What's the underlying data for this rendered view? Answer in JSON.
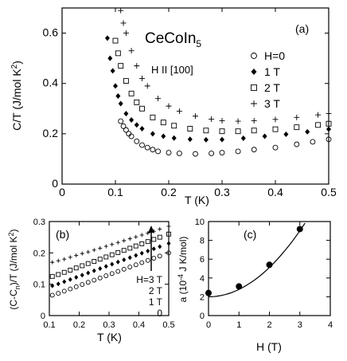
{
  "chart_data": [
    {
      "id": "a",
      "type": "scatter",
      "panel_label": "(a)",
      "annotations": {
        "compound": "CeCoIn",
        "compound_sub": "5",
        "field_dir": "H II [100]"
      },
      "xlabel": "T (K)",
      "ylabel": "C/T (J/mol K",
      "ylabel_sup": "2",
      "ylabel_end": ")",
      "xlim": [
        0,
        0.5
      ],
      "ylim": [
        0,
        0.7
      ],
      "xticks": [
        "0",
        "0.1",
        "0.2",
        "0.3",
        "0.4",
        "0.5"
      ],
      "yticks": [
        "0",
        "0.2",
        "0.4",
        "0.6"
      ],
      "legend_position": "right",
      "series": [
        {
          "name": "H=0",
          "marker": "open-circle",
          "x": [
            0.11,
            0.115,
            0.12,
            0.125,
            0.13,
            0.14,
            0.15,
            0.16,
            0.17,
            0.18,
            0.2,
            0.22,
            0.25,
            0.28,
            0.3,
            0.33,
            0.36,
            0.4,
            0.44,
            0.47,
            0.5
          ],
          "y": [
            0.25,
            0.23,
            0.215,
            0.2,
            0.19,
            0.17,
            0.155,
            0.145,
            0.137,
            0.13,
            0.125,
            0.122,
            0.12,
            0.122,
            0.125,
            0.13,
            0.137,
            0.145,
            0.158,
            0.168,
            0.178
          ]
        },
        {
          "name": "1 T",
          "marker": "filled-diamond",
          "x": [
            0.085,
            0.09,
            0.095,
            0.1,
            0.105,
            0.11,
            0.12,
            0.13,
            0.14,
            0.15,
            0.17,
            0.19,
            0.21,
            0.24,
            0.27,
            0.3,
            0.34,
            0.38,
            0.42,
            0.46,
            0.5
          ],
          "y": [
            0.58,
            0.5,
            0.45,
            0.39,
            0.35,
            0.32,
            0.28,
            0.255,
            0.235,
            0.22,
            0.2,
            0.19,
            0.183,
            0.178,
            0.176,
            0.177,
            0.182,
            0.19,
            0.198,
            0.208,
            0.218
          ]
        },
        {
          "name": "2 T",
          "marker": "open-square",
          "x": [
            0.1,
            0.105,
            0.11,
            0.12,
            0.13,
            0.14,
            0.15,
            0.17,
            0.19,
            0.21,
            0.24,
            0.27,
            0.3,
            0.33,
            0.36,
            0.4,
            0.44,
            0.48,
            0.5
          ],
          "y": [
            0.57,
            0.52,
            0.47,
            0.41,
            0.36,
            0.325,
            0.3,
            0.265,
            0.245,
            0.232,
            0.22,
            0.213,
            0.21,
            0.21,
            0.213,
            0.218,
            0.226,
            0.235,
            0.24
          ]
        },
        {
          "name": "3 T",
          "marker": "plus",
          "x": [
            0.11,
            0.115,
            0.12,
            0.13,
            0.14,
            0.15,
            0.16,
            0.18,
            0.2,
            0.22,
            0.25,
            0.28,
            0.3,
            0.33,
            0.36,
            0.4,
            0.44,
            0.48,
            0.5
          ],
          "y": [
            0.69,
            0.64,
            0.6,
            0.53,
            0.47,
            0.42,
            0.39,
            0.34,
            0.31,
            0.29,
            0.27,
            0.258,
            0.252,
            0.25,
            0.252,
            0.257,
            0.265,
            0.275,
            0.28
          ]
        }
      ]
    },
    {
      "id": "b",
      "type": "scatter",
      "panel_label": "(b)",
      "xlabel": "T (K)",
      "ylabel": "(C-C",
      "ylabel_sub": "n",
      "ylabel_mid": ")/T (J/mol K",
      "ylabel_sup": "2",
      "ylabel_end": ")",
      "xlim": [
        0.1,
        0.5
      ],
      "ylim": [
        0,
        0.3
      ],
      "xticks": [
        "0.1",
        "0.2",
        "0.3",
        "0.4",
        "0.5"
      ],
      "yticks": [
        "0",
        "0.1",
        "0.2",
        "0.3"
      ],
      "legend": [
        "H=3 T",
        "2 T",
        "1 T",
        "0"
      ],
      "series": [
        {
          "name": "H=3 T",
          "marker": "plus",
          "x": [
            0.11,
            0.13,
            0.15,
            0.17,
            0.19,
            0.21,
            0.23,
            0.25,
            0.27,
            0.29,
            0.31,
            0.33,
            0.35,
            0.37,
            0.39,
            0.41,
            0.43,
            0.45,
            0.47,
            0.5
          ],
          "y": [
            0.17,
            0.175,
            0.18,
            0.186,
            0.192,
            0.198,
            0.203,
            0.209,
            0.215,
            0.221,
            0.227,
            0.233,
            0.239,
            0.245,
            0.251,
            0.257,
            0.263,
            0.269,
            0.276,
            0.285
          ]
        },
        {
          "name": "2 T",
          "marker": "open-square",
          "x": [
            0.11,
            0.13,
            0.15,
            0.17,
            0.19,
            0.21,
            0.23,
            0.25,
            0.27,
            0.29,
            0.31,
            0.33,
            0.35,
            0.37,
            0.39,
            0.41,
            0.43,
            0.45,
            0.47,
            0.5
          ],
          "y": [
            0.125,
            0.131,
            0.138,
            0.145,
            0.152,
            0.159,
            0.166,
            0.173,
            0.18,
            0.187,
            0.194,
            0.201,
            0.208,
            0.215,
            0.222,
            0.229,
            0.236,
            0.243,
            0.25,
            0.26
          ]
        },
        {
          "name": "1 T",
          "marker": "filled-diamond",
          "x": [
            0.11,
            0.13,
            0.15,
            0.17,
            0.19,
            0.21,
            0.23,
            0.25,
            0.27,
            0.29,
            0.31,
            0.33,
            0.35,
            0.37,
            0.39,
            0.41,
            0.43,
            0.45,
            0.47,
            0.5
          ],
          "y": [
            0.095,
            0.101,
            0.108,
            0.115,
            0.122,
            0.129,
            0.136,
            0.143,
            0.15,
            0.157,
            0.164,
            0.171,
            0.178,
            0.185,
            0.192,
            0.199,
            0.206,
            0.213,
            0.22,
            0.23
          ]
        },
        {
          "name": "0",
          "marker": "open-circle",
          "x": [
            0.11,
            0.13,
            0.15,
            0.17,
            0.19,
            0.21,
            0.23,
            0.25,
            0.27,
            0.29,
            0.31,
            0.33,
            0.35,
            0.37,
            0.39,
            0.41,
            0.43,
            0.45,
            0.47,
            0.5
          ],
          "y": [
            0.065,
            0.071,
            0.078,
            0.085,
            0.092,
            0.099,
            0.106,
            0.113,
            0.12,
            0.127,
            0.134,
            0.141,
            0.148,
            0.155,
            0.162,
            0.169,
            0.176,
            0.183,
            0.19,
            0.2
          ]
        }
      ]
    },
    {
      "id": "c",
      "type": "scatter",
      "panel_label": "(c)",
      "xlabel": "H (T)",
      "ylabel": "a (10",
      "ylabel_sup": "-4",
      "ylabel_end": " J K/mol)",
      "xlim": [
        0,
        4
      ],
      "ylim": [
        0,
        10
      ],
      "xticks": [
        "0",
        "1",
        "2",
        "3",
        "4"
      ],
      "yticks": [
        "0",
        "2",
        "4",
        "6",
        "8",
        "10"
      ],
      "points": {
        "x": [
          0,
          1,
          2,
          3
        ],
        "y": [
          2.4,
          3.1,
          5.4,
          9.2
        ]
      },
      "fit_curve": {
        "a0": 2.0,
        "b": 0.78,
        "exponent": 2,
        "x_range": [
          0,
          3.25
        ]
      }
    }
  ]
}
